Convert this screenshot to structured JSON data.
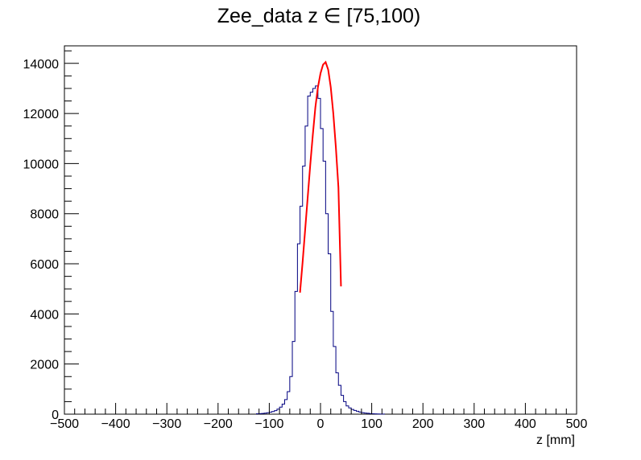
{
  "chart_data": {
    "type": "histogram",
    "title": "Zee_data z  ∈ [75,100)",
    "xlabel": "z [mm]",
    "ylabel": "",
    "xlim": [
      -500,
      500
    ],
    "ylim": [
      0,
      14700
    ],
    "x_ticks": [
      -500,
      -400,
      -300,
      -200,
      -100,
      0,
      100,
      200,
      300,
      400,
      500
    ],
    "x_tick_labels": [
      "−500",
      "−400",
      "−300",
      "−200",
      "−100",
      "0",
      "100",
      "200",
      "300",
      "400",
      "500"
    ],
    "y_ticks": [
      0,
      2000,
      4000,
      6000,
      8000,
      10000,
      12000,
      14000
    ],
    "y_tick_labels": [
      "0",
      "2000",
      "4000",
      "6000",
      "8000",
      "10000",
      "12000",
      "14000"
    ],
    "grid": false,
    "series": [
      {
        "type": "histogram",
        "color": "#000080",
        "bin_width": 5,
        "bins_from": -125,
        "values": [
          15,
          20,
          30,
          40,
          55,
          80,
          105,
          140,
          200,
          280,
          400,
          580,
          900,
          1500,
          2900,
          4900,
          6800,
          8300,
          9900,
          11500,
          12700,
          12850,
          13000,
          13100,
          12600,
          11400,
          10100,
          8000,
          6400,
          4100,
          2700,
          1650,
          1150,
          750,
          500,
          330,
          250,
          190,
          150,
          115,
          85,
          60,
          45,
          35,
          25,
          18,
          12,
          8,
          5,
          3
        ]
      },
      {
        "type": "line",
        "color": "#ff0000",
        "note": "gaussian fit",
        "x": [
          -40,
          -35,
          -30,
          -25,
          -20,
          -15,
          -10,
          -5,
          0,
          5,
          10,
          15,
          20,
          25,
          30,
          35,
          40
        ],
        "values": [
          4850,
          6050,
          7350,
          8650,
          9950,
          11150,
          12250,
          13050,
          13600,
          13950,
          14050,
          13750,
          13050,
          12000,
          10650,
          9050,
          5100
        ]
      }
    ]
  }
}
